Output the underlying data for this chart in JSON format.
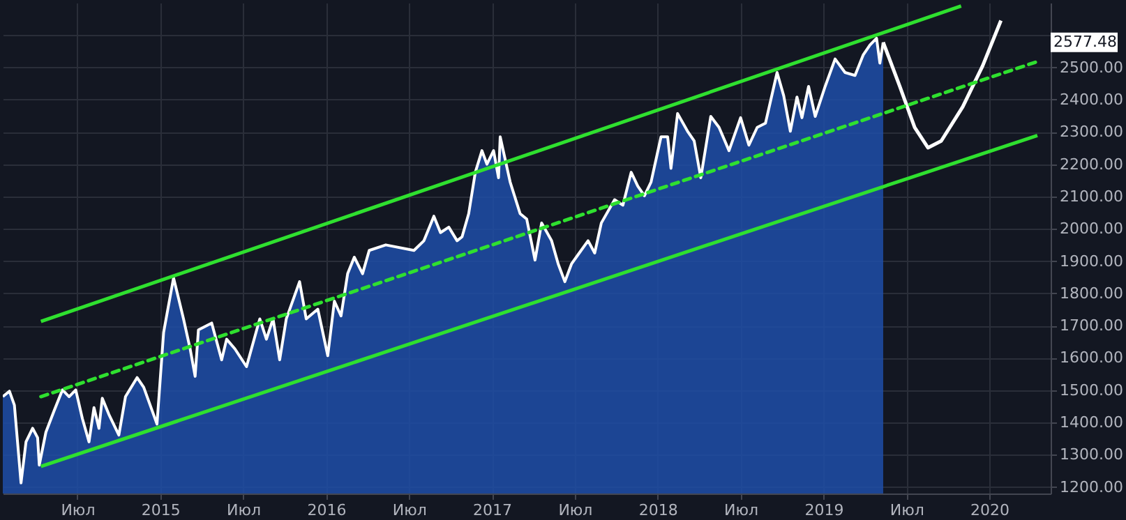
{
  "chart_data": {
    "type": "line",
    "xlim": [
      2014.05,
      2020.37
    ],
    "ylim": [
      1180,
      2700
    ],
    "xticks": [
      {
        "value": 2014.5,
        "label": "Июл"
      },
      {
        "value": 2015,
        "label": "2015"
      },
      {
        "value": 2015.5,
        "label": "Июл"
      },
      {
        "value": 2016,
        "label": "2016"
      },
      {
        "value": 2016.5,
        "label": "Июл"
      },
      {
        "value": 2017,
        "label": "2017"
      },
      {
        "value": 2017.5,
        "label": "Июл"
      },
      {
        "value": 2018,
        "label": "2018"
      },
      {
        "value": 2018.5,
        "label": "Июл"
      },
      {
        "value": 2019,
        "label": "2019"
      },
      {
        "value": 2019.5,
        "label": "Июл"
      },
      {
        "value": 2020,
        "label": "2020"
      }
    ],
    "yticks": [
      {
        "value": 1200,
        "label": "1200.00"
      },
      {
        "value": 1300,
        "label": "1300.00"
      },
      {
        "value": 1400,
        "label": "1400.00"
      },
      {
        "value": 1500,
        "label": "1500.00"
      },
      {
        "value": 1600,
        "label": "1600.00"
      },
      {
        "value": 1700,
        "label": "1700.00"
      },
      {
        "value": 1800,
        "label": "1800.00"
      },
      {
        "value": 1900,
        "label": "1900.00"
      },
      {
        "value": 2000,
        "label": "2000.00"
      },
      {
        "value": 2100,
        "label": "2100.00"
      },
      {
        "value": 2200,
        "label": "2200.00"
      },
      {
        "value": 2300,
        "label": "2300.00"
      },
      {
        "value": 2400,
        "label": "2400.00"
      },
      {
        "value": 2500,
        "label": "2500.00"
      },
      {
        "value": 2600,
        "label": null
      }
    ],
    "grid": true,
    "line_style": "solid",
    "annotations": [
      "2577.48"
    ],
    "series": [
      {
        "type": "area",
        "color": "#1f4ea8",
        "x": [
          2014.05,
          2014.09,
          2014.12,
          2014.16,
          2014.19,
          2014.23,
          2014.26,
          2014.27,
          2014.31,
          2014.36,
          2014.41,
          2014.45,
          2014.49,
          2014.53,
          2014.57,
          2014.6,
          2014.63,
          2014.65,
          2014.69,
          2014.75,
          2014.79,
          2014.86,
          2014.9,
          2014.98,
          2015.02,
          2015.08,
          2015.14,
          2015.18,
          2015.21,
          2015.23,
          2015.31,
          2015.37,
          2015.4,
          2015.45,
          2015.52,
          2015.6,
          2015.64,
          2015.68,
          2015.72,
          2015.76,
          2015.84,
          2015.88,
          2015.95,
          2016.01,
          2016.05,
          2016.09,
          2016.13,
          2016.17,
          2016.22,
          2016.26,
          2016.36,
          2016.53,
          2016.59,
          2016.65,
          2016.69,
          2016.74,
          2016.79,
          2016.82,
          2016.86,
          2016.9,
          2016.94,
          2016.97,
          2017.01,
          2017.04,
          2017.05,
          2017.11,
          2017.17,
          2017.21,
          2017.26,
          2017.3,
          2017.36,
          2017.4,
          2017.44,
          2017.48,
          2017.52,
          2017.58,
          2017.62,
          2017.66,
          2017.74,
          2017.79,
          2017.84,
          2017.88,
          2017.92,
          2017.96,
          2018.02,
          2018.06,
          2018.08,
          2018.12,
          2018.18,
          2018.22,
          2018.26,
          2018.32,
          2018.37,
          2018.43,
          2018.5,
          2018.55,
          2018.6,
          2018.65,
          2018.72,
          2018.76,
          2018.8,
          2018.84,
          2018.87,
          2018.91,
          2018.95,
          2019.01,
          2019.07,
          2019.13,
          2019.19,
          2019.24,
          2019.28,
          2019.32,
          2019.34,
          2019.36
        ],
        "values": [
          1480,
          1497,
          1454,
          1213,
          1340,
          1382,
          1353,
          1268,
          1370,
          1437,
          1501,
          1480,
          1501,
          1412,
          1340,
          1446,
          1382,
          1475,
          1425,
          1361,
          1480,
          1539,
          1509,
          1395,
          1679,
          1848,
          1721,
          1628,
          1543,
          1687,
          1708,
          1594,
          1658,
          1628,
          1573,
          1721,
          1658,
          1721,
          1594,
          1721,
          1836,
          1721,
          1751,
          1607,
          1776,
          1730,
          1861,
          1912,
          1861,
          1933,
          1950,
          1933,
          1963,
          2039,
          1988,
          2005,
          1963,
          1975,
          2047,
          2175,
          2242,
          2200,
          2242,
          2158,
          2285,
          2145,
          2047,
          2030,
          1903,
          2018,
          1963,
          1891,
          1836,
          1891,
          1920,
          1963,
          1925,
          2018,
          2090,
          2073,
          2175,
          2132,
          2102,
          2145,
          2285,
          2285,
          2187,
          2357,
          2302,
          2272,
          2158,
          2348,
          2314,
          2242,
          2344,
          2259,
          2314,
          2327,
          2484,
          2412,
          2302,
          2408,
          2344,
          2441,
          2348,
          2441,
          2526,
          2484,
          2475,
          2539,
          2569,
          2590,
          2513,
          2577.48
        ]
      },
      {
        "color": "#ffffff",
        "x": [
          2019.36,
          2019.46,
          2019.55,
          2019.63,
          2019.71,
          2019.84,
          2019.96,
          2020.07
        ],
        "values": [
          2577.48,
          2441,
          2314,
          2251,
          2272,
          2378,
          2505,
          2645
        ]
      },
      {
        "color": "#2fe02f",
        "x": [
          2014.28,
          2019.83
        ],
        "values": [
          1713,
          2690
        ]
      },
      {
        "color": "#2fe02f",
        "line_style": "dashed",
        "x": [
          2014.28,
          2020.29
        ],
        "values": [
          1480,
          2518
        ]
      },
      {
        "color": "#2fe02f",
        "x": [
          2014.28,
          2020.29
        ],
        "values": [
          1264,
          2289
        ]
      }
    ]
  }
}
